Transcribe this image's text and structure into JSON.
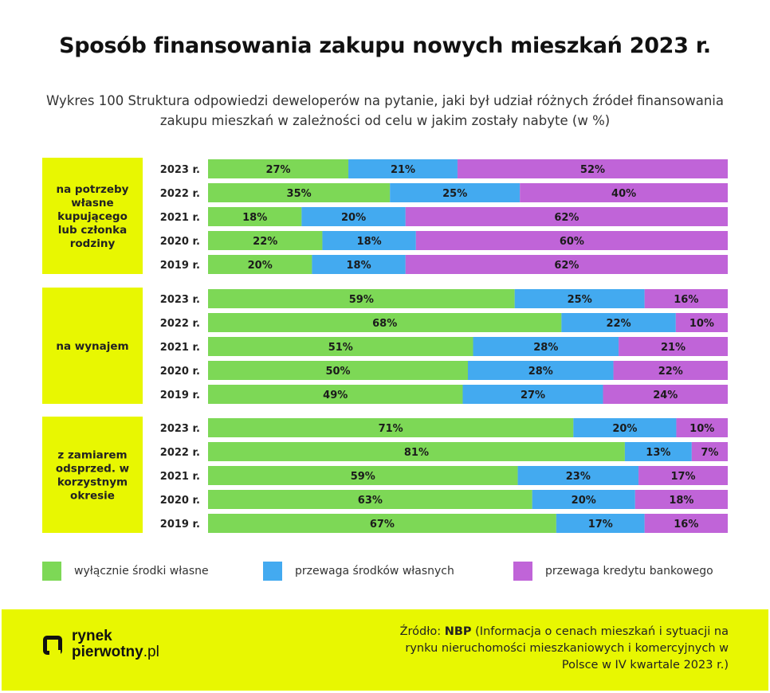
{
  "title": "Sposób finansowania zakupu nowych mieszkań 2023 r.",
  "subtitle": "Wykres 100 Struktura odpowiedzi deweloperów na pytanie, jaki był udział różnych źródeł finansowania zakupu mieszkań w zależności od celu w jakim zostały nabyte (w %)",
  "colors": {
    "green": "#7dd856",
    "blue": "#43aaf0",
    "purple": "#c064d8",
    "group_bg": "#e8f701",
    "bar_track": "#eceff3"
  },
  "chart_data": {
    "type": "bar",
    "orientation": "horizontal",
    "stacked": true,
    "units": "%",
    "series_names": [
      "wyłącznie środki własne",
      "przewaga środków własnych",
      "przewaga kredytu bankowego"
    ],
    "groups": [
      {
        "label": "na potrzeby własne kupującego lub członka rodziny",
        "rows": [
          {
            "year": "2023 r.",
            "values": [
              27,
              21,
              52
            ]
          },
          {
            "year": "2022 r.",
            "values": [
              35,
              25,
              40
            ]
          },
          {
            "year": "2021 r.",
            "values": [
              18,
              20,
              62
            ]
          },
          {
            "year": "2020 r.",
            "values": [
              22,
              18,
              60
            ]
          },
          {
            "year": "2019 r.",
            "values": [
              20,
              18,
              62
            ]
          }
        ]
      },
      {
        "label": "na wynajem",
        "rows": [
          {
            "year": "2023 r.",
            "values": [
              59,
              25,
              16
            ]
          },
          {
            "year": "2022 r.",
            "values": [
              68,
              22,
              10
            ]
          },
          {
            "year": "2021 r.",
            "values": [
              51,
              28,
              21
            ]
          },
          {
            "year": "2020 r.",
            "values": [
              50,
              28,
              22
            ]
          },
          {
            "year": "2019 r.",
            "values": [
              49,
              27,
              24
            ]
          }
        ]
      },
      {
        "label": "z zamiarem odsprzed. w korzystnym okresie",
        "rows": [
          {
            "year": "2023 r.",
            "values": [
              71,
              20,
              10
            ]
          },
          {
            "year": "2022 r.",
            "values": [
              81,
              13,
              7
            ]
          },
          {
            "year": "2021 r.",
            "values": [
              59,
              23,
              17
            ]
          },
          {
            "year": "2020 r.",
            "values": [
              63,
              20,
              18
            ]
          },
          {
            "year": "2019 r.",
            "values": [
              67,
              17,
              16
            ]
          }
        ]
      }
    ]
  },
  "legend": [
    {
      "label": "wyłącznie środki własne"
    },
    {
      "label": "przewaga środków własnych"
    },
    {
      "label": "przewaga kredytu bankowego"
    }
  ],
  "footer": {
    "logo_line1": "rynek",
    "logo_line2": "pierwotny",
    "logo_tld": ".pl",
    "source_prefix": "Źródło: ",
    "source_org": "NBP",
    "source_text": " (Informacja o cenach mieszkań i sytuacji na rynku nieruchomości mieszkaniowych i komercyjnych w Polsce w IV kwartale 2023 r.)"
  }
}
